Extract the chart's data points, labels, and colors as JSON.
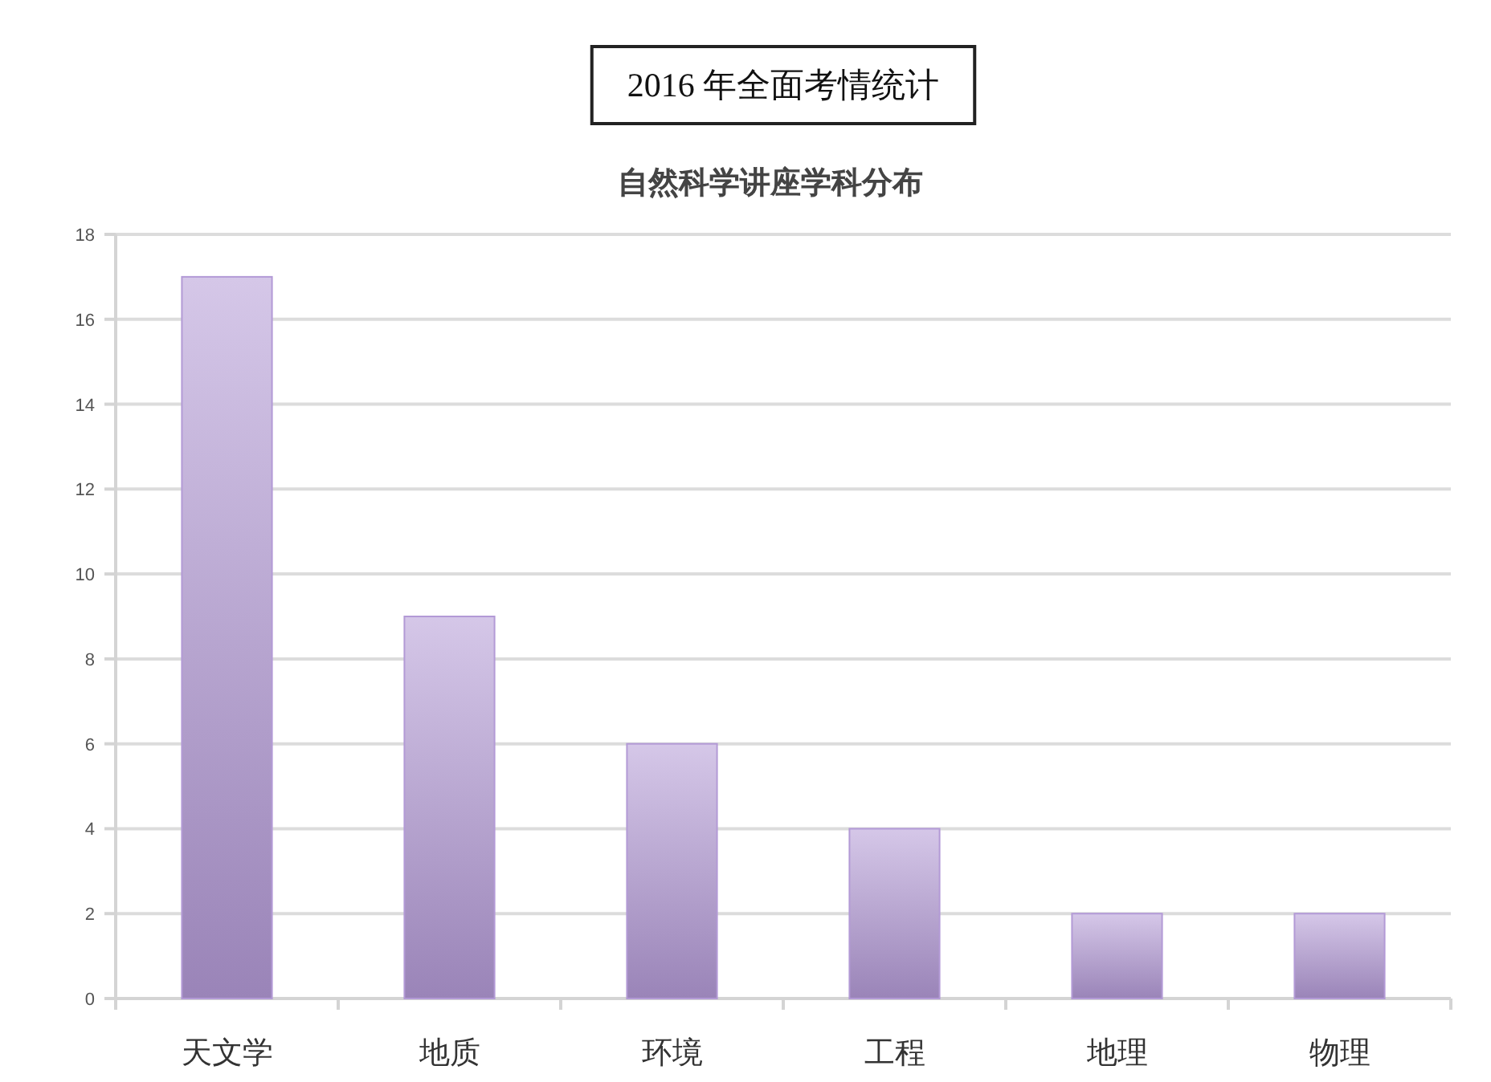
{
  "chart_data": {
    "type": "bar",
    "title": "2016 年全面考情统计",
    "subtitle": "自然科学讲座学科分布",
    "categories": [
      "天文学",
      "地质",
      "环境",
      "工程",
      "地理",
      "物理"
    ],
    "values": [
      17,
      9,
      6,
      4,
      2,
      2
    ],
    "color": "#b39ad6",
    "ylim": [
      0,
      18
    ],
    "yticks": [
      0,
      2,
      4,
      6,
      8,
      10,
      12,
      14,
      16,
      18
    ],
    "grid": "y"
  }
}
